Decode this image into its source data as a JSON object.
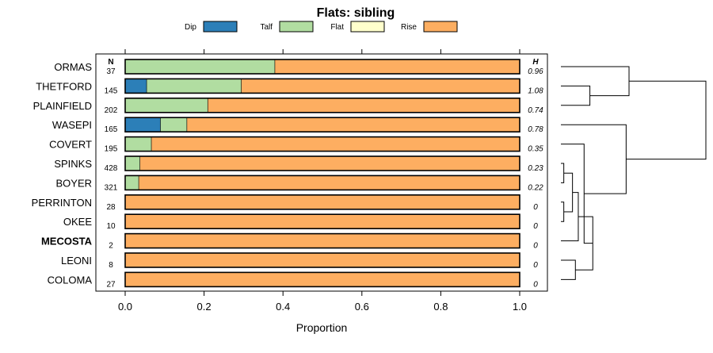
{
  "chart_data": {
    "type": "bar",
    "subtype": "stacked-horizontal-proportion",
    "title": "Flats: sibling",
    "xlabel": "Proportion",
    "ylabel": "",
    "xlim": [
      0,
      1
    ],
    "x_ticks": [
      "0.0",
      "0.2",
      "0.4",
      "0.6",
      "0.8",
      "1.0"
    ],
    "x_tick_values": [
      0,
      0.2,
      0.4,
      0.6,
      0.8,
      1.0
    ],
    "n_header": "N",
    "h_header": "H",
    "legend": [
      {
        "name": "Dip",
        "color": "#2c7fb8"
      },
      {
        "name": "Talf",
        "color": "#b1dda1"
      },
      {
        "name": "Flat",
        "color": "#ffffcc"
      },
      {
        "name": "Rise",
        "color": "#fdae61"
      }
    ],
    "categories": [
      "ORMAS",
      "THETFORD",
      "PLAINFIELD",
      "WASEPI",
      "COVERT",
      "SPINKS",
      "BOYER",
      "PERRINTON",
      "OKEE",
      "MECOSTA",
      "LEONI",
      "COLOMA"
    ],
    "bold_categories": [
      "MECOSTA"
    ],
    "n": [
      "37",
      "145",
      "202",
      "165",
      "195",
      "428",
      "321",
      "28",
      "10",
      "2",
      "8",
      "27"
    ],
    "h": [
      "0.96",
      "1.08",
      "0.74",
      "0.78",
      "0.35",
      "0.23",
      "0.22",
      "0",
      "0",
      "0",
      "0",
      "0"
    ],
    "series": [
      {
        "name": "Dip",
        "values": [
          0.0,
          0.055,
          0.0,
          0.09,
          0.0,
          0.0,
          0.0,
          0,
          0,
          0,
          0,
          0
        ]
      },
      {
        "name": "Talf",
        "values": [
          0.38,
          0.24,
          0.21,
          0.067,
          0.067,
          0.038,
          0.035,
          0,
          0,
          0,
          0,
          0
        ]
      },
      {
        "name": "Flat",
        "values": [
          0,
          0,
          0,
          0,
          0,
          0,
          0,
          0,
          0,
          0,
          0,
          0
        ]
      },
      {
        "name": "Rise",
        "values": [
          0.62,
          0.705,
          0.79,
          0.843,
          0.933,
          0.962,
          0.965,
          1,
          1,
          1,
          1,
          1
        ]
      }
    ],
    "dendrogram": {
      "orientation": "right",
      "note": "hierarchical clustering of rows shown to the right of the bars",
      "max_height": 1.0,
      "nodes": [
        {
          "id": "A",
          "children": [
            "THETFORD",
            "PLAINFIELD"
          ],
          "height": 0.2
        },
        {
          "id": "B",
          "children": [
            "ORMAS",
            "A"
          ],
          "height": 0.47
        },
        {
          "id": "C",
          "children": [
            "SPINKS",
            "BOYER"
          ],
          "height": 0.02
        },
        {
          "id": "D",
          "children": [
            "PERRINTON",
            "OKEE"
          ],
          "height": 0.02
        },
        {
          "id": "E",
          "children": [
            "C",
            "D"
          ],
          "height": 0.08
        },
        {
          "id": "F",
          "children": [
            "E",
            "MECOSTA"
          ],
          "height": 0.12
        },
        {
          "id": "G",
          "children": [
            "LEONI",
            "COLOMA"
          ],
          "height": 0.1
        },
        {
          "id": "H",
          "children": [
            "F",
            "G"
          ],
          "height": 0.22
        },
        {
          "id": "I",
          "children": [
            "COVERT",
            "H"
          ],
          "height": 0.16
        },
        {
          "id": "J",
          "children": [
            "WASEPI",
            "I"
          ],
          "height": 0.45
        },
        {
          "id": "K",
          "children": [
            "B",
            "J"
          ],
          "height": 1.0
        }
      ],
      "root": "K"
    }
  }
}
